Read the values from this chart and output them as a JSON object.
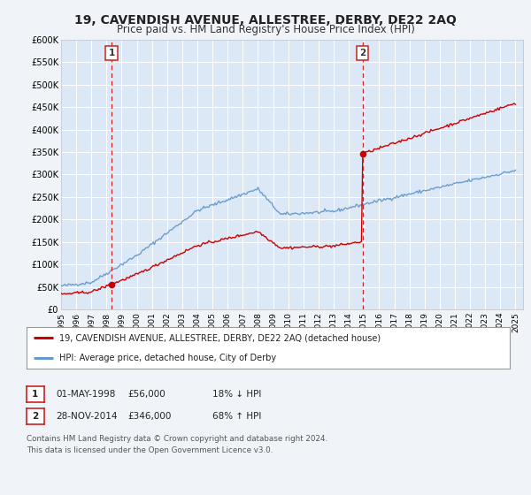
{
  "title": "19, CAVENDISH AVENUE, ALLESTREE, DERBY, DE22 2AQ",
  "subtitle": "Price paid vs. HM Land Registry's House Price Index (HPI)",
  "title_fontsize": 10,
  "subtitle_fontsize": 8.5,
  "bg_color": "#f0f4f8",
  "plot_bg_color": "#dce8f5",
  "grid_color": "#ffffff",
  "ylim": [
    0,
    600000
  ],
  "xlim_start": 1995.0,
  "xlim_end": 2025.5,
  "yticks": [
    0,
    50000,
    100000,
    150000,
    200000,
    250000,
    300000,
    350000,
    400000,
    450000,
    500000,
    550000,
    600000
  ],
  "ytick_labels": [
    "£0",
    "£50K",
    "£100K",
    "£150K",
    "£200K",
    "£250K",
    "£300K",
    "£350K",
    "£400K",
    "£450K",
    "£500K",
    "£550K",
    "£600K"
  ],
  "xtick_labels": [
    "1995",
    "1996",
    "1997",
    "1998",
    "1999",
    "2000",
    "2001",
    "2002",
    "2003",
    "2004",
    "2005",
    "2006",
    "2007",
    "2008",
    "2009",
    "2010",
    "2011",
    "2012",
    "2013",
    "2014",
    "2015",
    "2016",
    "2017",
    "2018",
    "2019",
    "2020",
    "2021",
    "2022",
    "2023",
    "2024",
    "2025"
  ],
  "red_line_color": "#cc0000",
  "blue_line_color": "#6699cc",
  "marker_color": "#cc0000",
  "vline_color": "#cc2222",
  "sale1_x": 1998.33,
  "sale1_y": 56000,
  "sale2_x": 2014.9,
  "sale2_y": 346000,
  "legend_text1": "19, CAVENDISH AVENUE, ALLESTREE, DERBY, DE22 2AQ (detached house)",
  "legend_text2": "HPI: Average price, detached house, City of Derby",
  "table_row1": [
    "1",
    "01-MAY-1998",
    "£56,000",
    "18% ↓ HPI"
  ],
  "table_row2": [
    "2",
    "28-NOV-2014",
    "£346,000",
    "68% ↑ HPI"
  ],
  "footer_text": "Contains HM Land Registry data © Crown copyright and database right 2024.\nThis data is licensed under the Open Government Licence v3.0."
}
